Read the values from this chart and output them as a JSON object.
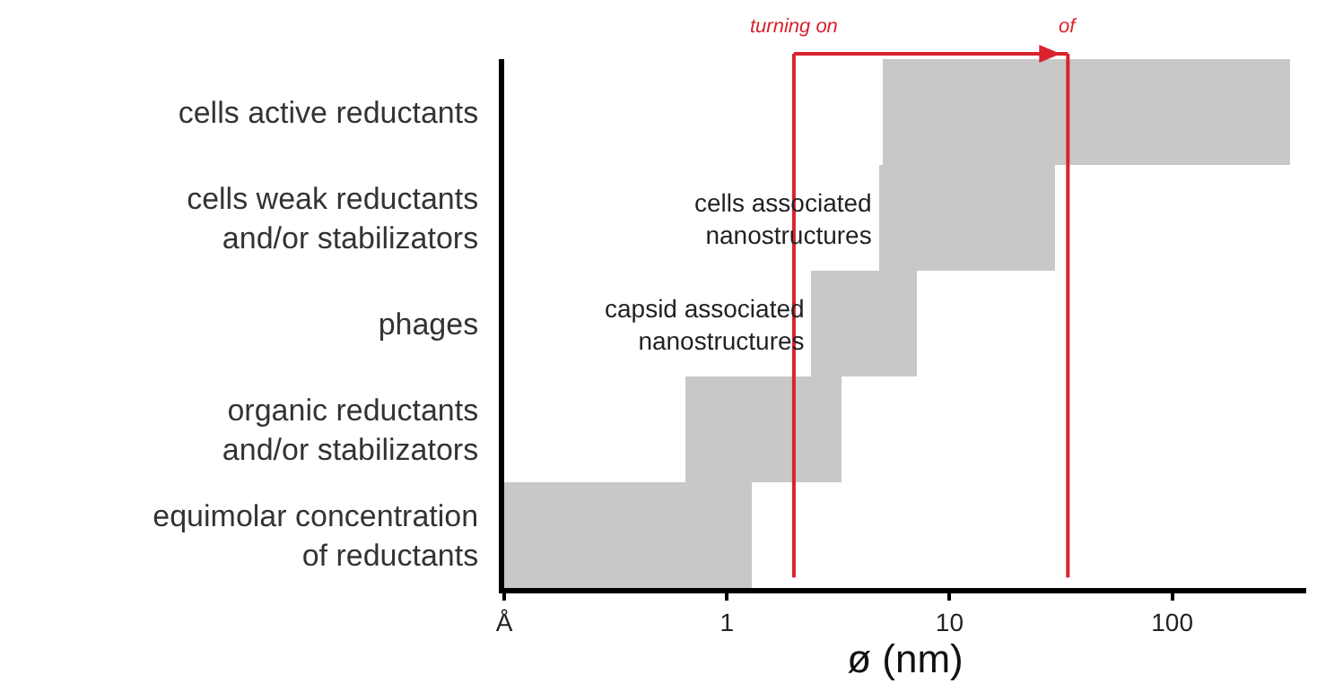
{
  "chart_data": {
    "type": "bar",
    "orientation": "horizontal",
    "log": "x",
    "categories": [
      "cells active reductants",
      "cells weak reductants\nand/or stabilizators",
      "phages",
      "organic reductants\nand/or stabilizators",
      "equimolar concentration\nof reductants"
    ],
    "base": [
      5,
      4.8,
      2.4,
      0.65,
      0.1
    ],
    "values": [
      335,
      25.2,
      4.8,
      2.65,
      1.2
    ],
    "color": "#c8c8c8",
    "xlabel": "ø (nm)",
    "xlim": [
      0.1,
      400
    ],
    "xticks": [
      {
        "value": 0.1,
        "label": "Å"
      },
      1,
      10,
      100
    ],
    "ref_lines": [
      {
        "axis": "x",
        "value": 2,
        "label": "turning on",
        "color": "#d9232e"
      },
      {
        "axis": "x",
        "value": 34,
        "label": "of",
        "color": "#d9232e"
      }
    ],
    "annotations": [
      {
        "text": "cells associated\nnanostructures",
        "x": 4.8,
        "y": "cells weak reductants\nand/or stabilizators"
      },
      {
        "text": "capsid associated\nnanostructures",
        "x": 2.4,
        "y": "phages"
      }
    ],
    "grid": false
  }
}
